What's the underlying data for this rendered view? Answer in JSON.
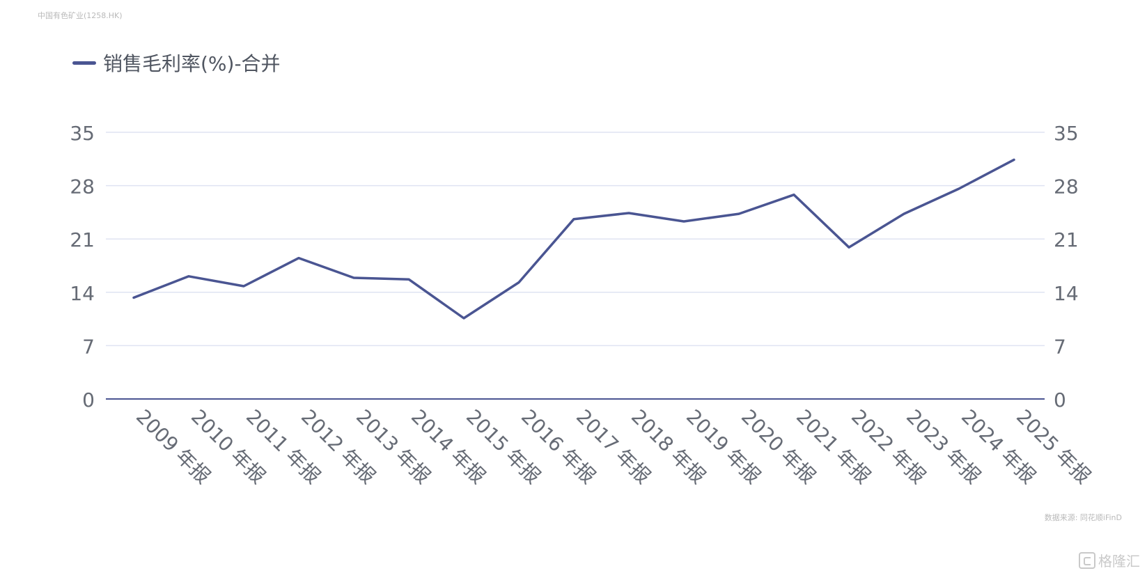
{
  "header": {
    "company": "中国有色矿业(1258.HK)"
  },
  "legend": {
    "label": "销售毛利率(%)-合并"
  },
  "footer": {
    "source": "数据来源: 同花顺iFinD",
    "watermark": "格隆汇"
  },
  "colors": {
    "line": "#4a5592",
    "grid": "#dfe3f2",
    "axis": "#4a5592",
    "tick_text": "#666b75"
  },
  "chart_data": {
    "type": "line",
    "title": "",
    "xlabel": "",
    "ylabel": "",
    "ylim": [
      0,
      35
    ],
    "yticks": [
      0,
      7,
      14,
      21,
      28,
      35
    ],
    "categories": [
      "2009 年报",
      "2010 年报",
      "2011 年报",
      "2012 年报",
      "2013 年报",
      "2014 年报",
      "2015 年报",
      "2016 年报",
      "2017 年报",
      "2018 年报",
      "2019 年报",
      "2020 年报",
      "2021 年报",
      "2022 年报",
      "2023 年报",
      "2024 年报",
      "2025 年报"
    ],
    "series": [
      {
        "name": "销售毛利率(%)-合并",
        "values": [
          13.3,
          16.1,
          14.8,
          18.5,
          15.9,
          15.7,
          10.6,
          15.3,
          23.6,
          24.4,
          23.3,
          24.3,
          26.8,
          19.9,
          24.3,
          27.6,
          31.4
        ]
      }
    ],
    "grid": true,
    "legend_position": "top-left",
    "dual_y_axis": true
  }
}
